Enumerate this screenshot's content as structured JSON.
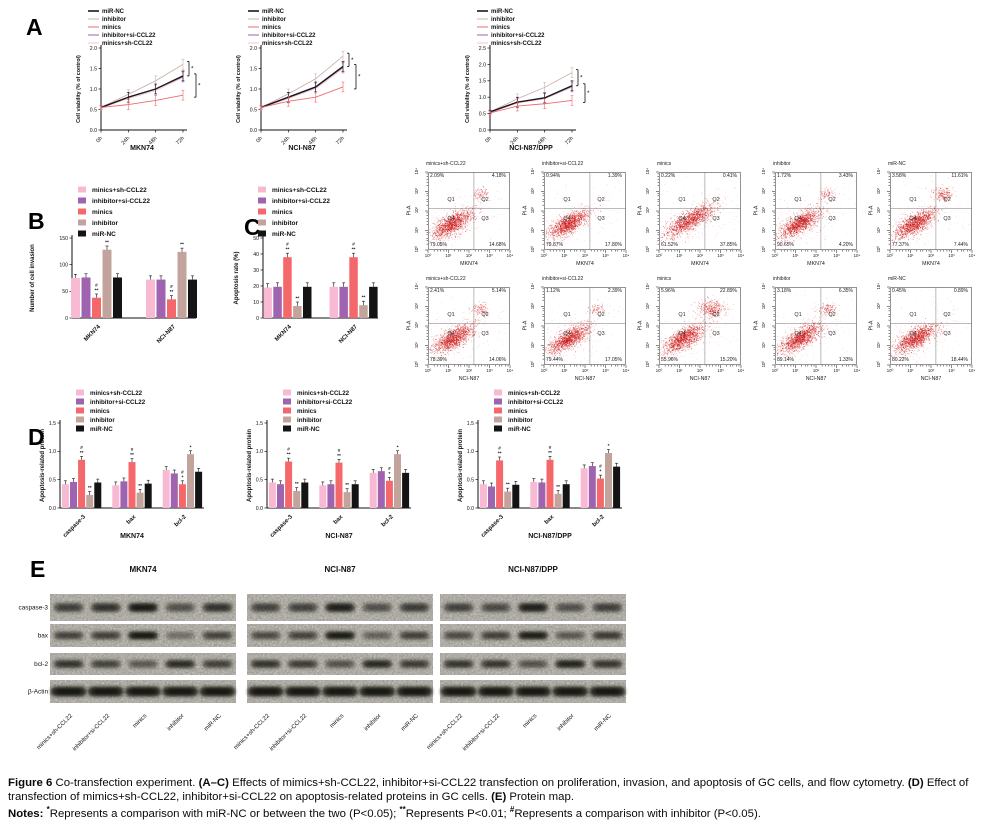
{
  "panels": {
    "A": "A",
    "B": "B",
    "C": "C",
    "D": "D",
    "E": "E"
  },
  "group_names": [
    "minics+sh-CCL22",
    "inhibitor+si-CCL22",
    "minics",
    "inhibitor",
    "miR-NC"
  ],
  "colors": {
    "bar": {
      "minics+sh-CCL22": "#f8b9d3",
      "inhibitor+si-CCL22": "#9f63b0",
      "minics": "#f4686b",
      "inhibitor": "#c3a49c",
      "miR-NC": "#141414"
    },
    "line": {
      "miR-NC": "#1a1a1a",
      "inhibitor": "#cbb4ad",
      "minics": "#ef6b6e",
      "inhibitor+si-CCL22": "#9f63b0",
      "minics+sh-CCL22": "#f6c2d9"
    },
    "flow_dot": "#cc1414",
    "axis": "#111111"
  },
  "chart_data": [
    {
      "id": "A1",
      "type": "line",
      "title": "MKN74",
      "ylabel": "Cell viability (% of control)",
      "x": [
        "0h",
        "24h",
        "48h",
        "72h"
      ],
      "ylim": [
        0,
        2.0
      ],
      "yticks": [
        0,
        0.5,
        1.0,
        1.5,
        2.0
      ],
      "err": 0.12,
      "sig": [
        "*",
        "*"
      ],
      "series": [
        {
          "name": "miR-NC",
          "values": [
            0.55,
            0.8,
            1.0,
            1.32
          ]
        },
        {
          "name": "inhibitor",
          "values": [
            0.55,
            0.87,
            1.2,
            1.6
          ]
        },
        {
          "name": "minics",
          "values": [
            0.55,
            0.62,
            0.72,
            0.85
          ]
        },
        {
          "name": "inhibitor+si-CCL22",
          "values": [
            0.55,
            0.8,
            1.0,
            1.3
          ]
        },
        {
          "name": "minics+sh-CCL22",
          "values": [
            0.53,
            0.77,
            0.96,
            1.28
          ]
        }
      ]
    },
    {
      "id": "A2",
      "type": "line",
      "title": "NCI-N87",
      "ylabel": "Cell viability (% of control)",
      "x": [
        "0h",
        "24h",
        "48h",
        "72h"
      ],
      "ylim": [
        0,
        2.0
      ],
      "yticks": [
        0,
        0.5,
        1.0,
        1.5,
        2.0
      ],
      "err": 0.12,
      "sig": [
        "*",
        "*"
      ],
      "series": [
        {
          "name": "miR-NC",
          "values": [
            0.55,
            0.8,
            1.05,
            1.55
          ]
        },
        {
          "name": "inhibitor",
          "values": [
            0.55,
            0.88,
            1.25,
            1.8
          ]
        },
        {
          "name": "minics",
          "values": [
            0.55,
            0.7,
            0.8,
            1.05
          ]
        },
        {
          "name": "inhibitor+si-CCL22",
          "values": [
            0.55,
            0.79,
            1.04,
            1.53
          ]
        },
        {
          "name": "minics+sh-CCL22",
          "values": [
            0.53,
            0.77,
            1.01,
            1.5
          ]
        }
      ]
    },
    {
      "id": "A3",
      "type": "line",
      "title": "NCI-N87/DPP",
      "ylabel": "Cell viability (% of control)",
      "x": [
        "0h",
        "24h",
        "48h",
        "72h"
      ],
      "ylim": [
        0,
        2.5
      ],
      "yticks": [
        0,
        0.5,
        1.0,
        1.5,
        2.0,
        2.5
      ],
      "err": 0.15,
      "sig": [
        "*",
        "*"
      ],
      "series": [
        {
          "name": "miR-NC",
          "values": [
            0.55,
            0.85,
            0.98,
            1.35
          ]
        },
        {
          "name": "inhibitor",
          "values": [
            0.55,
            0.95,
            1.3,
            1.75
          ]
        },
        {
          "name": "minics",
          "values": [
            0.52,
            0.73,
            0.8,
            0.9
          ]
        },
        {
          "name": "inhibitor+si-CCL22",
          "values": [
            0.55,
            0.84,
            0.97,
            1.33
          ]
        },
        {
          "name": "minics+sh-CCL22",
          "values": [
            0.53,
            0.82,
            0.95,
            1.3
          ]
        }
      ]
    },
    {
      "id": "B",
      "type": "bar",
      "ylabel": "Number of cell invasion",
      "categories": [
        "MKN74",
        "NCI-N87"
      ],
      "ylim": [
        0,
        150
      ],
      "yticks": [
        0,
        50,
        100,
        150
      ],
      "tickfmt": "int",
      "err": 7,
      "series": [
        {
          "name": "minics+sh-CCL22",
          "values": [
            75,
            72
          ]
        },
        {
          "name": "inhibitor+si-CCL22",
          "values": [
            76,
            72
          ]
        },
        {
          "name": "minics",
          "values": [
            38,
            35
          ]
        },
        {
          "name": "inhibitor",
          "values": [
            128,
            124
          ]
        },
        {
          "name": "miR-NC",
          "values": [
            76,
            72
          ]
        }
      ],
      "sig": {
        "minics": [
          [
            "#",
            "**"
          ],
          [
            "#",
            "**"
          ]
        ],
        "inhibitor": [
          [
            "**"
          ],
          [
            "**"
          ]
        ]
      }
    },
    {
      "id": "C",
      "type": "bar",
      "ylabel": "Apoptosis rate (%)",
      "categories": [
        "MKN74",
        "NCI-N87"
      ],
      "ylim": [
        0,
        50
      ],
      "yticks": [
        0,
        10,
        20,
        30,
        40,
        50
      ],
      "tickfmt": "int",
      "err": 2.5,
      "series": [
        {
          "name": "minics+sh-CCL22",
          "values": [
            19,
            19.5
          ]
        },
        {
          "name": "inhibitor+si-CCL22",
          "values": [
            19.5,
            19.5
          ]
        },
        {
          "name": "minics",
          "values": [
            38,
            38
          ]
        },
        {
          "name": "inhibitor",
          "values": [
            7.5,
            8
          ]
        },
        {
          "name": "miR-NC",
          "values": [
            19.5,
            19.5
          ]
        }
      ],
      "sig": {
        "minics": [
          [
            "#",
            "**"
          ],
          [
            "#",
            "**"
          ]
        ],
        "inhibitor": [
          [
            "**"
          ],
          [
            "**"
          ]
        ]
      }
    },
    {
      "id": "D1",
      "type": "bar",
      "title": "MKN74",
      "ylabel": "Apoptosis-related protein",
      "categories": [
        "caspase-3",
        "bax",
        "bcl-2"
      ],
      "ylim": [
        0,
        1.5
      ],
      "yticks": [
        0,
        0.5,
        1.0,
        1.5
      ],
      "tickfmt": "1dp",
      "err": 0.06,
      "series": [
        {
          "name": "minics+sh-CCL22",
          "values": [
            0.42,
            0.4,
            0.67
          ]
        },
        {
          "name": "inhibitor+si-CCL22",
          "values": [
            0.46,
            0.47,
            0.61
          ]
        },
        {
          "name": "minics",
          "values": [
            0.85,
            0.81,
            0.42
          ]
        },
        {
          "name": "inhibitor",
          "values": [
            0.23,
            0.27,
            0.95
          ]
        },
        {
          "name": "miR-NC",
          "values": [
            0.45,
            0.43,
            0.64
          ]
        }
      ],
      "sig": {
        "minics": [
          [
            "#",
            "**"
          ],
          [
            "#",
            "**"
          ],
          [
            "#",
            "*"
          ]
        ],
        "inhibitor": [
          [
            "**"
          ],
          [
            "**"
          ],
          [
            "*"
          ]
        ]
      }
    },
    {
      "id": "D2",
      "type": "bar",
      "title": "NCI-N87",
      "ylabel": "Apoptosis-related protein",
      "categories": [
        "caspase-3",
        "bax",
        "bcl-2"
      ],
      "ylim": [
        0,
        1.5
      ],
      "yticks": [
        0,
        0.5,
        1.0,
        1.5
      ],
      "tickfmt": "1dp",
      "err": 0.06,
      "series": [
        {
          "name": "minics+sh-CCL22",
          "values": [
            0.45,
            0.4,
            0.62
          ]
        },
        {
          "name": "inhibitor+si-CCL22",
          "values": [
            0.42,
            0.42,
            0.65
          ]
        },
        {
          "name": "minics",
          "values": [
            0.82,
            0.8,
            0.48
          ]
        },
        {
          "name": "inhibitor",
          "values": [
            0.3,
            0.28,
            0.95
          ]
        },
        {
          "name": "miR-NC",
          "values": [
            0.45,
            0.42,
            0.62
          ]
        }
      ],
      "sig": {
        "minics": [
          [
            "#",
            "**"
          ],
          [
            "#",
            "**"
          ],
          [
            "#",
            "*"
          ]
        ],
        "inhibitor": [
          [
            "**"
          ],
          [
            "**"
          ],
          [
            "*"
          ]
        ]
      }
    },
    {
      "id": "D3",
      "type": "bar",
      "title": "NCI-N87/DPP",
      "ylabel": "Apoptosis-related protein",
      "categories": [
        "caspase-3",
        "bax",
        "bcl-2"
      ],
      "ylim": [
        0,
        1.5
      ],
      "yticks": [
        0,
        0.5,
        1.0,
        1.5
      ],
      "tickfmt": "1dp",
      "err": 0.06,
      "series": [
        {
          "name": "minics+sh-CCL22",
          "values": [
            0.42,
            0.46,
            0.7
          ]
        },
        {
          "name": "inhibitor+si-CCL22",
          "values": [
            0.38,
            0.45,
            0.74
          ]
        },
        {
          "name": "minics",
          "values": [
            0.84,
            0.85,
            0.52
          ]
        },
        {
          "name": "inhibitor",
          "values": [
            0.29,
            0.25,
            0.97
          ]
        },
        {
          "name": "miR-NC",
          "values": [
            0.41,
            0.42,
            0.73
          ]
        }
      ],
      "sig": {
        "minics": [
          [
            "#",
            "**"
          ],
          [
            "#",
            "**"
          ],
          [
            "#",
            "*"
          ]
        ],
        "inhibitor": [
          [
            "**"
          ],
          [
            "**"
          ],
          [
            "*"
          ]
        ]
      }
    }
  ],
  "flow": {
    "ylabel": "PI-A",
    "xticks": [
      "10⁰",
      "10¹",
      "10²",
      "10³",
      "10⁴"
    ],
    "yticks": [
      "10⁰",
      "10¹",
      "10²",
      "10³",
      "10⁴"
    ],
    "quadrants": [
      "Q1",
      "Q2",
      "Q3",
      "Q4"
    ],
    "rows": [
      {
        "xlabel": "MKN74",
        "plots": [
          {
            "title": "minics+sh-CCL22",
            "ul": "2.09%",
            "ur": "4.18%",
            "ll": "79.05%",
            "lr": "14.68%"
          },
          {
            "title": "inhibitor+si-CCL22",
            "ul": "0.94%",
            "ur": "1.39%",
            "ll": "79.87%",
            "lr": "17.80%"
          },
          {
            "title": "minics",
            "ul": "0.22%",
            "ur": "0.41%",
            "ll": "61.52%",
            "lr": "37.85%"
          },
          {
            "title": "inhibitor",
            "ul": "1.72%",
            "ur": "3.43%",
            "ll": "90.65%",
            "lr": "4.20%"
          },
          {
            "title": "miR-NC",
            "ul": "3.58%",
            "ur": "11.61%",
            "ll": "77.37%",
            "lr": "7.44%"
          }
        ]
      },
      {
        "xlabel": "NCI-N87",
        "plots": [
          {
            "title": "minics+sh-CCL22",
            "ul": "2.41%",
            "ur": "5.14%",
            "ll": "78.39%",
            "lr": "14.06%"
          },
          {
            "title": "inhibitor+si-CCL22",
            "ul": "1.12%",
            "ur": "2.39%",
            "ll": "79.44%",
            "lr": "17.05%"
          },
          {
            "title": "minics",
            "ul": "5.96%",
            "ur": "22.89%",
            "ll": "55.96%",
            "lr": "15.20%"
          },
          {
            "title": "inhibitor",
            "ul": "3.18%",
            "ur": "6.35%",
            "ll": "89.14%",
            "lr": "1.33%"
          },
          {
            "title": "miR-NC",
            "ul": "0.45%",
            "ur": "0.89%",
            "ll": "80.22%",
            "lr": "18.44%"
          }
        ]
      }
    ]
  },
  "western": {
    "groups": [
      "MKN74",
      "NCI-N87",
      "NCI-N87/DPP"
    ],
    "rows": [
      "caspase-3",
      "bax",
      "bcl-2",
      "β-Actin"
    ],
    "lanes": [
      "minics+sh-CCL22",
      "inhibitor+si-CCL22",
      "minics",
      "inhibitor",
      "miR-NC"
    ],
    "bands": [
      [
        [
          0.62,
          0.72,
          0.92,
          0.5,
          0.72
        ],
        [
          0.6,
          0.62,
          0.95,
          0.32,
          0.6
        ],
        [
          0.72,
          0.6,
          0.45,
          0.78,
          0.62
        ],
        [
          0.95,
          0.95,
          0.95,
          0.95,
          0.95
        ]
      ],
      [
        [
          0.6,
          0.6,
          0.88,
          0.5,
          0.65
        ],
        [
          0.55,
          0.6,
          0.92,
          0.4,
          0.62
        ],
        [
          0.72,
          0.65,
          0.5,
          0.8,
          0.66
        ],
        [
          0.95,
          0.95,
          0.95,
          0.95,
          0.95
        ]
      ],
      [
        [
          0.6,
          0.55,
          0.86,
          0.5,
          0.62
        ],
        [
          0.55,
          0.62,
          0.9,
          0.45,
          0.66
        ],
        [
          0.7,
          0.7,
          0.5,
          0.85,
          0.7
        ],
        [
          0.95,
          0.95,
          0.95,
          0.95,
          0.95
        ]
      ]
    ]
  },
  "caption": {
    "paragraphs": [
      [
        {
          "t": "Figure 6",
          "b": true
        },
        {
          "t": " Co-transfection experiment. "
        },
        {
          "t": "(A–C)",
          "b": true
        },
        {
          "t": " Effects of mimics+sh-CCL22, inhibitor+si-CCL22 transfection on proliferation, invasion, and apoptosis of GC cells, and flow cytometry. "
        },
        {
          "t": "(D)",
          "b": true
        },
        {
          "t": " Effect of transfection of mimics+sh-CCL22, inhibitor+si-CCL22 on apoptosis-related proteins in GC cells. "
        },
        {
          "t": "(E)",
          "b": true
        },
        {
          "t": " Protein map."
        }
      ],
      [
        {
          "t": "Notes: ",
          "b": true
        },
        {
          "t": "*",
          "b": true,
          "sup": true
        },
        {
          "t": "Represents a comparison with miR-NC or between the two (P<0.05); "
        },
        {
          "t": "**",
          "b": true,
          "sup": true
        },
        {
          "t": "Represents P<0.01; "
        },
        {
          "t": "#",
          "b": true,
          "sup": true
        },
        {
          "t": "Represents a comparison with inhibitor (P<0.05)."
        }
      ]
    ]
  }
}
